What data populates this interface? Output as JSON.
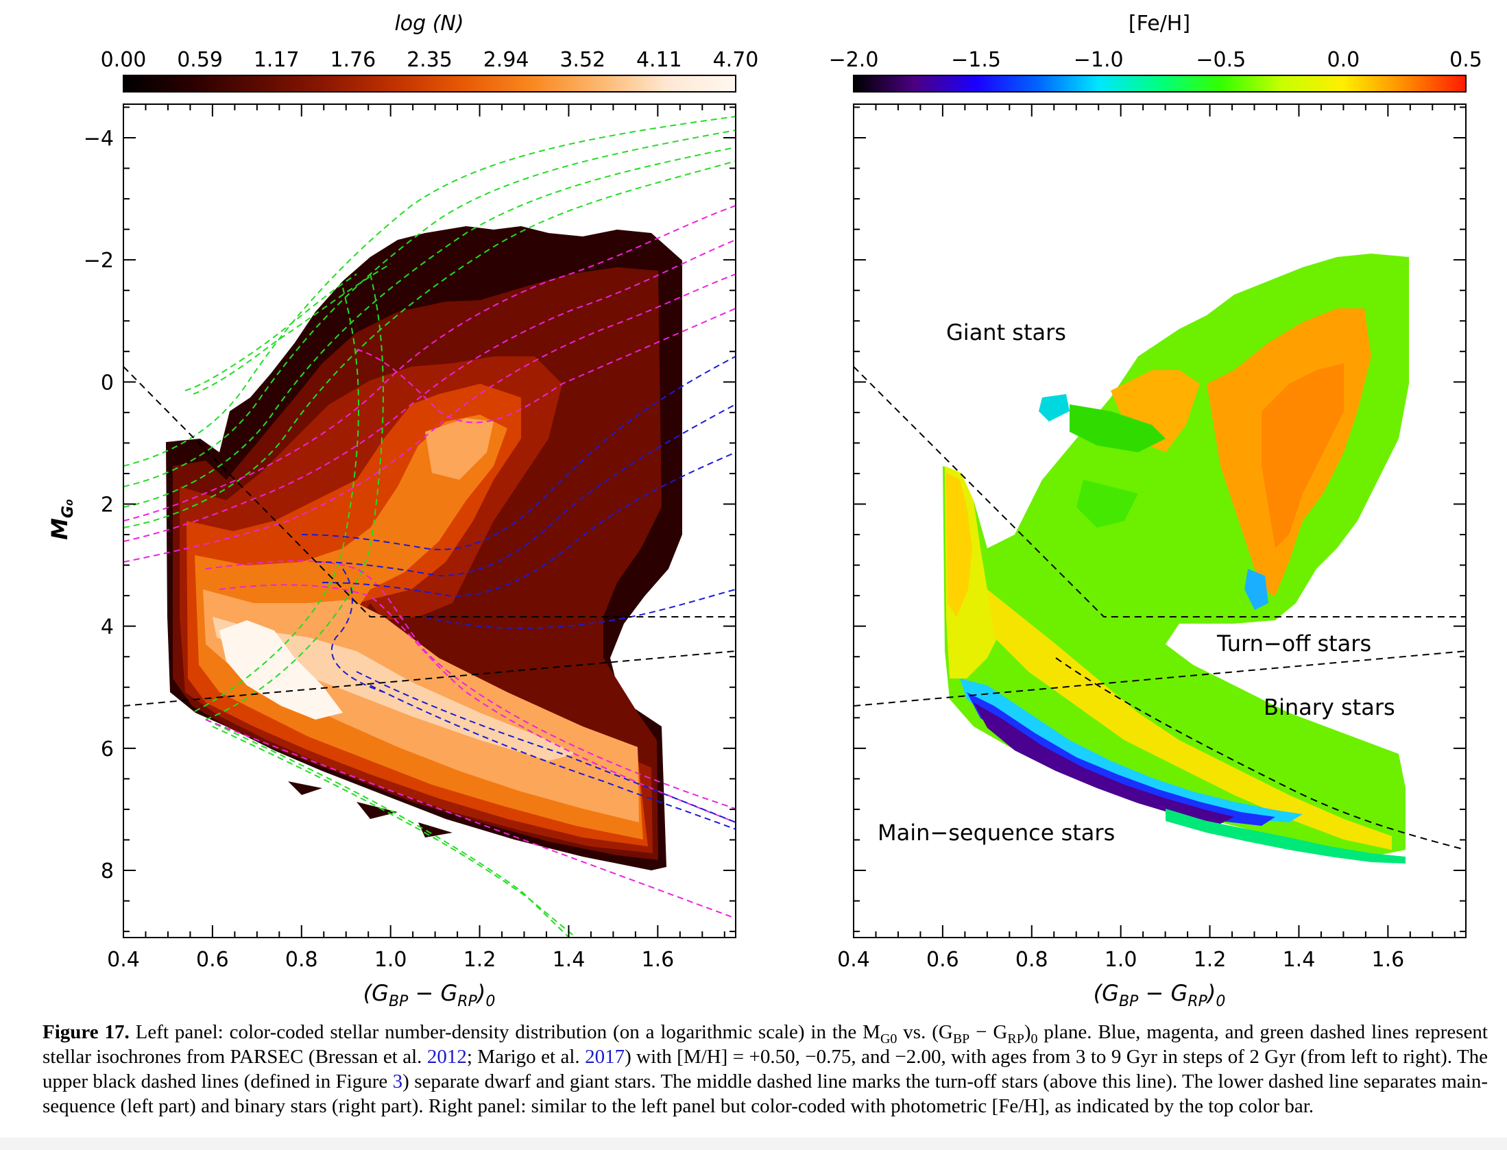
{
  "figure": {
    "left_panel": {
      "colorbar_title": "log (N)",
      "colorbar_ticks": [
        "0.00",
        "0.59",
        "1.17",
        "1.76",
        "2.35",
        "2.94",
        "3.52",
        "4.11",
        "4.70"
      ],
      "colorbar_colors": [
        "#000000",
        "#2a0000",
        "#5c0a00",
        "#8e1800",
        "#c23200",
        "#e85a05",
        "#f9881f",
        "#fcb76e",
        "#fee8d4",
        "#fff8f0"
      ]
    },
    "right_panel": {
      "colorbar_title": "[Fe/H]",
      "colorbar_ticks": [
        "−2.0",
        "−1.5",
        "−1.0",
        "−0.5",
        "0.0",
        "0.5"
      ],
      "colorbar_colors": [
        "#000000",
        "#4b0082",
        "#1b00ff",
        "#0064ff",
        "#00e6ff",
        "#00ff80",
        "#33ff00",
        "#c8ff00",
        "#ffee00",
        "#ff8c00",
        "#ff1a00"
      ],
      "labels": {
        "giant": "Giant stars",
        "turnoff": "Turn−off stars",
        "binary": "Binary stars",
        "main_sequence": "Main−sequence stars"
      }
    },
    "x_axis": {
      "ticks": [
        "0.4",
        "0.6",
        "0.8",
        "1.0",
        "1.2",
        "1.4",
        "1.6"
      ],
      "label_main_1": "(G",
      "label_sub_1": "BP",
      "label_mid": " − G",
      "label_sub_2": "RP",
      "label_end": ")",
      "label_sub_3": "0"
    },
    "y_axis": {
      "ticks": [
        "−4",
        "−2",
        "0",
        "2",
        "4",
        "6",
        "8"
      ],
      "label_main": "M",
      "label_sub": "G₀"
    }
  },
  "caption": {
    "label": "Figure 17.",
    "part1": " Left panel: color-coded stellar number-density distribution (on a logarithmic scale) in the M",
    "sub1": "G0",
    "part2": " vs. (G",
    "sub2": "BP",
    "part3": " − G",
    "sub3": "RP",
    "part4": ")",
    "sub4": "0",
    "part5": " plane. Blue, magenta, and green dashed lines represent stellar isochrones from PARSEC (Bressan et al. ",
    "cite1": "2012",
    "part6": "; Marigo et al. ",
    "cite2": "2017",
    "part7": ") with [M/H] = +0.50, −0.75, and −2.00, with ages from 3 to 9 Gyr in steps of 2 Gyr (from left to right). The upper black dashed lines (defined in Figure ",
    "cite3": "3",
    "part8": ") separate dwarf and giant stars. The middle dashed line marks the turn-off stars (above this line). The lower dashed line separates main-sequence (left part) and binary stars (right part). Right panel: similar to the left panel but color-coded with photometric [Fe/H], as indicated by the top color bar."
  }
}
